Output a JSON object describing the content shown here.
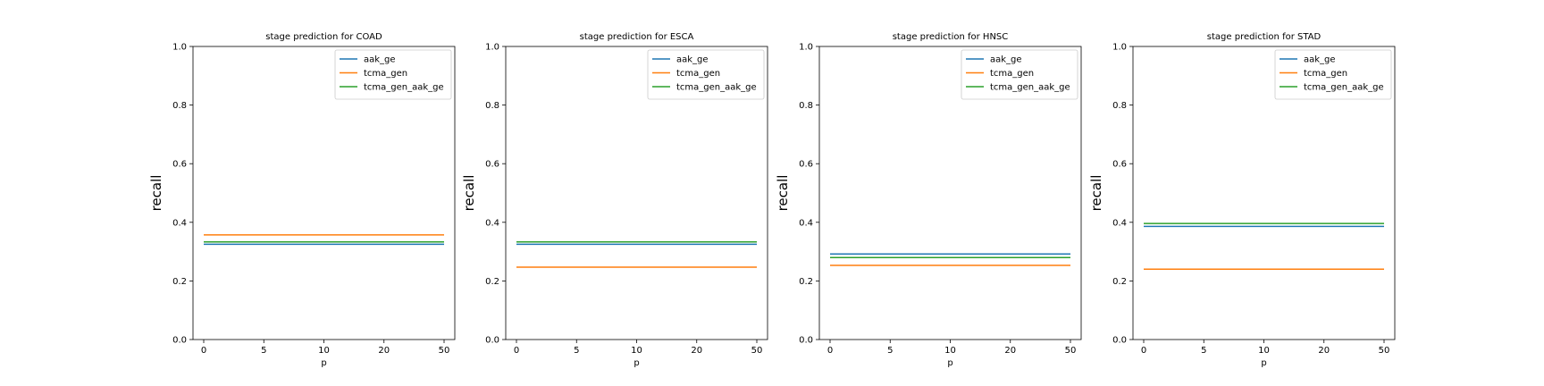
{
  "figure": {
    "ylabel": "recall",
    "xlabel": "p"
  },
  "colors": {
    "aak_ge": "#1f77b4",
    "tcma_gen": "#ff7f0e",
    "tcma_gen_aak_ge": "#2ca02c"
  },
  "chart_data": [
    {
      "type": "line",
      "title": "stage prediction for COAD",
      "xlabel": "p",
      "ylabel": "recall",
      "x": [
        "0",
        "5",
        "10",
        "20",
        "50"
      ],
      "ylim": [
        0,
        1
      ],
      "yticks": [
        "0.0",
        "0.2",
        "0.4",
        "0.6",
        "0.8",
        "1.0"
      ],
      "legend_position": "upper right",
      "series": [
        {
          "name": "aak_ge",
          "values": [
            0.325,
            0.325,
            0.325,
            0.325,
            0.325
          ]
        },
        {
          "name": "tcma_gen",
          "values": [
            0.357,
            0.357,
            0.357,
            0.357,
            0.357
          ]
        },
        {
          "name": "tcma_gen_aak_ge",
          "values": [
            0.333,
            0.333,
            0.333,
            0.333,
            0.333
          ]
        }
      ]
    },
    {
      "type": "line",
      "title": "stage prediction for ESCA",
      "xlabel": "p",
      "ylabel": "recall",
      "x": [
        "0",
        "5",
        "10",
        "20",
        "50"
      ],
      "ylim": [
        0,
        1
      ],
      "yticks": [
        "0.0",
        "0.2",
        "0.4",
        "0.6",
        "0.8",
        "1.0"
      ],
      "legend_position": "upper right",
      "series": [
        {
          "name": "aak_ge",
          "values": [
            0.325,
            0.325,
            0.325,
            0.325,
            0.325
          ]
        },
        {
          "name": "tcma_gen",
          "values": [
            0.247,
            0.247,
            0.247,
            0.247,
            0.247
          ]
        },
        {
          "name": "tcma_gen_aak_ge",
          "values": [
            0.333,
            0.333,
            0.333,
            0.333,
            0.333
          ]
        }
      ]
    },
    {
      "type": "line",
      "title": "stage prediction for HNSC",
      "xlabel": "p",
      "ylabel": "recall",
      "x": [
        "0",
        "5",
        "10",
        "20",
        "50"
      ],
      "ylim": [
        0,
        1
      ],
      "yticks": [
        "0.0",
        "0.2",
        "0.4",
        "0.6",
        "0.8",
        "1.0"
      ],
      "legend_position": "upper right",
      "series": [
        {
          "name": "aak_ge",
          "values": [
            0.292,
            0.292,
            0.292,
            0.292,
            0.292
          ]
        },
        {
          "name": "tcma_gen",
          "values": [
            0.253,
            0.253,
            0.253,
            0.253,
            0.253
          ]
        },
        {
          "name": "tcma_gen_aak_ge",
          "values": [
            0.28,
            0.28,
            0.28,
            0.28,
            0.28
          ]
        }
      ]
    },
    {
      "type": "line",
      "title": "stage prediction for STAD",
      "xlabel": "p",
      "ylabel": "recall",
      "x": [
        "0",
        "5",
        "10",
        "20",
        "50"
      ],
      "ylim": [
        0,
        1
      ],
      "yticks": [
        "0.0",
        "0.2",
        "0.4",
        "0.6",
        "0.8",
        "1.0"
      ],
      "legend_position": "upper right",
      "series": [
        {
          "name": "aak_ge",
          "values": [
            0.386,
            0.386,
            0.386,
            0.386,
            0.386
          ]
        },
        {
          "name": "tcma_gen",
          "values": [
            0.24,
            0.24,
            0.24,
            0.24,
            0.24
          ]
        },
        {
          "name": "tcma_gen_aak_ge",
          "values": [
            0.396,
            0.396,
            0.396,
            0.396,
            0.396
          ]
        }
      ]
    }
  ]
}
